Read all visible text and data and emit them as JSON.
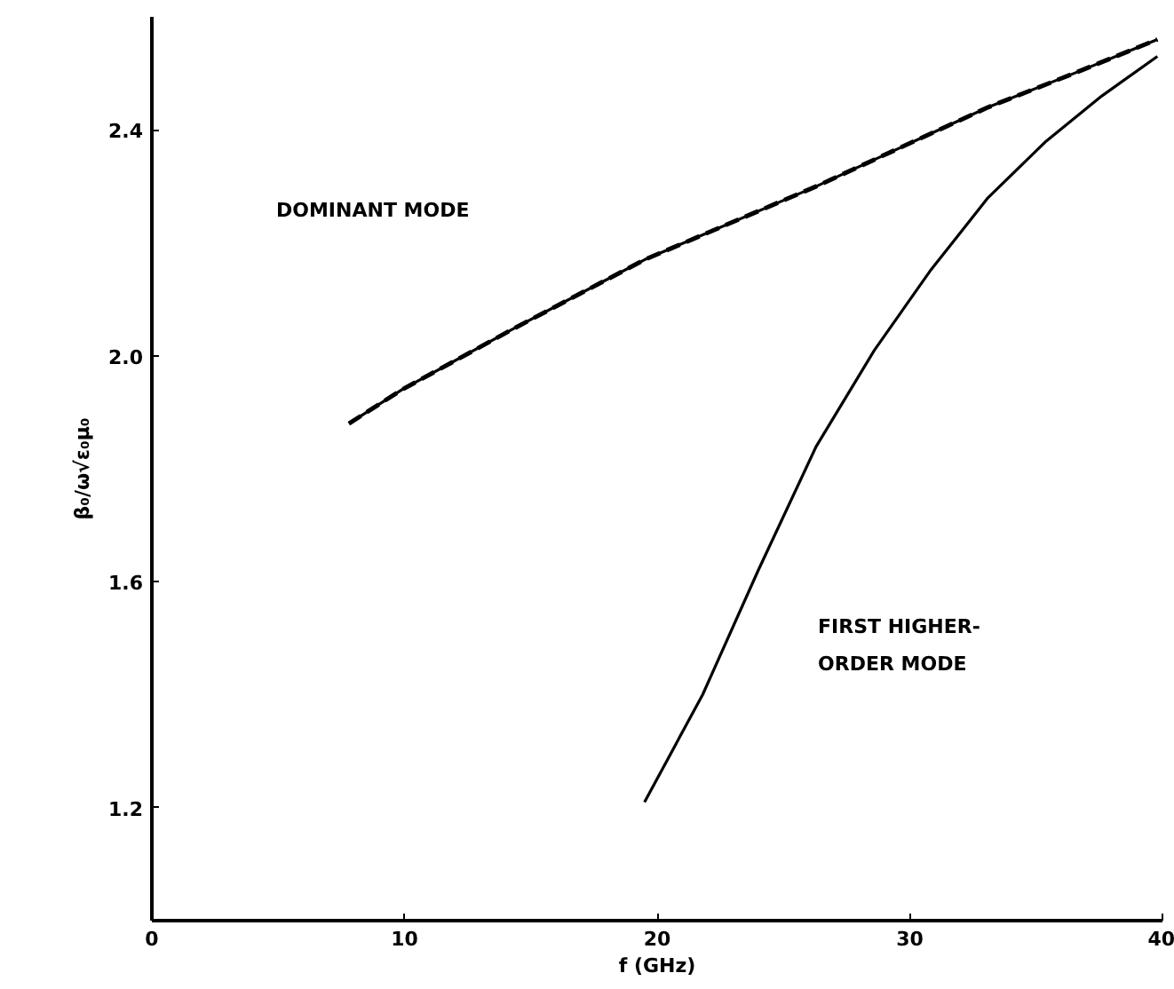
{
  "chart_data": {
    "type": "line",
    "xlabel": "f (GHz)",
    "ylabel": "β₀/ω√ε₀μ₀",
    "xlim": [
      0,
      40
    ],
    "ylim": [
      1.0,
      2.6
    ],
    "xticks": [
      0,
      10,
      20,
      30,
      40
    ],
    "yticks": [
      1.2,
      1.6,
      {
        "value": 2.0,
        "label": "2.0"
      },
      2.4
    ],
    "grid": false,
    "series": [
      {
        "color": "#000000",
        "line_style": "solid",
        "x": [
          7.8,
          9.9,
          14.4,
          17.8,
          19.5,
          26.3,
          29.7,
          33.1,
          36.5,
          39.8
        ],
        "values": [
          1.88,
          1.94,
          2.05,
          2.13,
          2.17,
          2.3,
          2.37,
          2.44,
          2.5,
          2.56
        ]
      },
      {
        "color": "#000000",
        "line_style": "dashed",
        "x": [
          7.8,
          9.9,
          14.4,
          17.8,
          19.5,
          26.3,
          29.7,
          33.1,
          36.5,
          39.8
        ],
        "values": [
          1.88,
          1.94,
          2.05,
          2.13,
          2.17,
          2.3,
          2.37,
          2.44,
          2.5,
          2.56
        ]
      },
      {
        "color": "#000000",
        "line_style": "solid",
        "x": [
          19.5,
          21.8,
          24.0,
          26.3,
          28.6,
          30.8,
          33.1,
          35.4,
          37.6,
          39.8
        ],
        "values": [
          1.21,
          1.4,
          1.62,
          1.84,
          2.01,
          2.15,
          2.28,
          2.38,
          2.46,
          2.53
        ]
      }
    ],
    "annotations": [
      "DOMINANT MODE",
      "FIRST HIGHER-\nORDER MODE"
    ]
  }
}
